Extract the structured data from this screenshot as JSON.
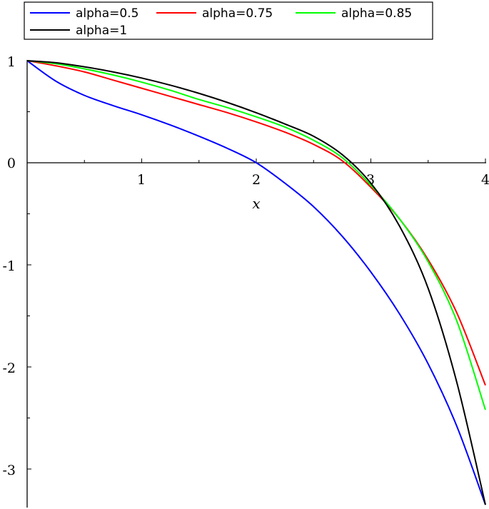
{
  "chart_data": {
    "type": "line",
    "xlabel": "x",
    "ylabel": "",
    "xlim": [
      0,
      4
    ],
    "ylim": [
      -3.35,
      1
    ],
    "x_ticks": [
      "1",
      "2",
      "3",
      "4"
    ],
    "y_ticks": [
      "1",
      "0",
      "-1",
      "-2",
      "-3"
    ],
    "x_tick_values": [
      1,
      2,
      3,
      4
    ],
    "y_tick_values": [
      1,
      0,
      -1,
      -2,
      -3
    ],
    "grid": false,
    "legend_position": "top",
    "series": [
      {
        "name": "alpha=0.5",
        "color": "#0000ff",
        "x": [
          0,
          0.25,
          0.5,
          0.75,
          1,
          1.25,
          1.5,
          1.75,
          2,
          2.25,
          2.5,
          2.75,
          3,
          3.25,
          3.5,
          3.75,
          4
        ],
        "y": [
          1,
          0.8,
          0.66,
          0.56,
          0.47,
          0.37,
          0.26,
          0.14,
          0.0,
          -0.2,
          -0.43,
          -0.72,
          -1.07,
          -1.48,
          -1.97,
          -2.58,
          -3.35
        ]
      },
      {
        "name": "alpha=0.75",
        "color": "#ff0000",
        "x": [
          0,
          0.25,
          0.5,
          0.75,
          1,
          1.25,
          1.5,
          1.75,
          2,
          2.25,
          2.5,
          2.75,
          3,
          3.25,
          3.5,
          3.75,
          4
        ],
        "y": [
          1,
          0.95,
          0.89,
          0.81,
          0.73,
          0.65,
          0.57,
          0.49,
          0.4,
          0.3,
          0.18,
          0.02,
          -0.24,
          -0.55,
          -0.95,
          -1.47,
          -2.18
        ]
      },
      {
        "name": "alpha=0.85",
        "color": "#00ff00",
        "x": [
          0,
          0.25,
          0.5,
          0.75,
          1,
          1.25,
          1.5,
          1.75,
          2,
          2.25,
          2.5,
          2.75,
          3,
          3.25,
          3.5,
          3.75,
          4
        ],
        "y": [
          1,
          0.97,
          0.92,
          0.86,
          0.79,
          0.71,
          0.62,
          0.54,
          0.45,
          0.35,
          0.22,
          0.05,
          -0.22,
          -0.55,
          -0.97,
          -1.55,
          -2.42
        ]
      },
      {
        "name": "alpha=1",
        "color": "#000000",
        "x": [
          0,
          0.25,
          0.5,
          0.75,
          1,
          1.25,
          1.5,
          1.75,
          2,
          2.25,
          2.5,
          2.75,
          3,
          3.25,
          3.5,
          3.75,
          4
        ],
        "y": [
          1,
          0.98,
          0.94,
          0.89,
          0.83,
          0.76,
          0.68,
          0.59,
          0.49,
          0.38,
          0.26,
          0.08,
          -0.2,
          -0.62,
          -1.23,
          -2.15,
          -3.35
        ]
      }
    ]
  }
}
